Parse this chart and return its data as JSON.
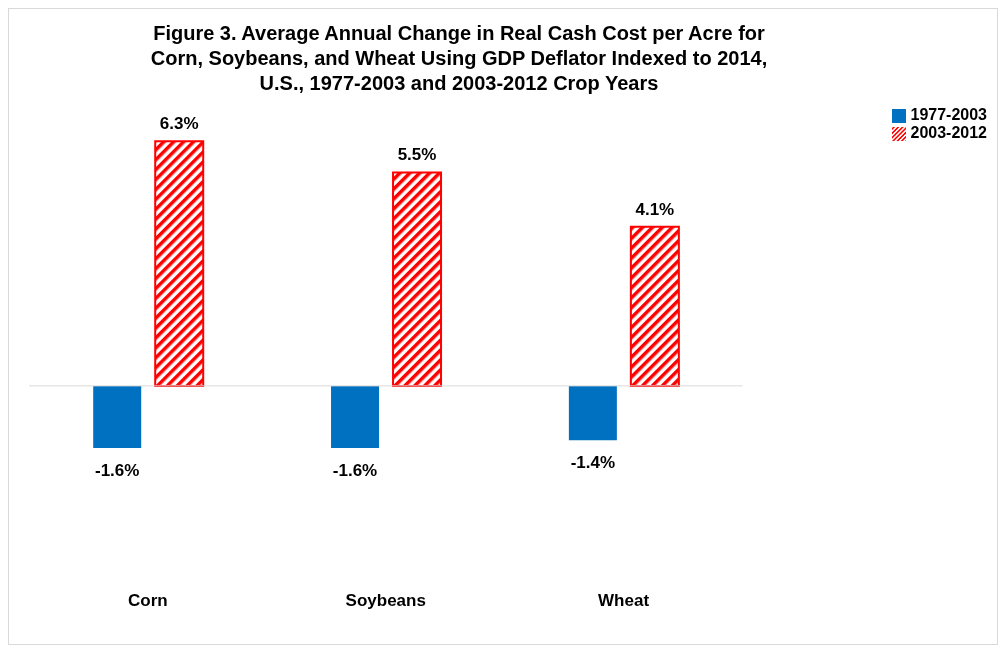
{
  "chart_data": {
    "type": "bar",
    "title": "Figure 3. Average Annual Change in Real Cash Cost per Acre for Corn, Soybeans, and Wheat Using GDP Deflator Indexed to 2014, U.S., 1977-2003 and 2003-2012 Crop Years",
    "categories": [
      "Corn",
      "Soybeans",
      "Wheat"
    ],
    "series": [
      {
        "name": "1977-2003",
        "color": "#0070c0",
        "values": [
          -1.6,
          -1.6,
          -1.4
        ],
        "value_labels": [
          "-1.6%",
          "-1.6%",
          "-1.4%"
        ]
      },
      {
        "name": "2003-2012",
        "color": "#ff0000",
        "values": [
          6.3,
          5.5,
          4.1
        ],
        "value_labels": [
          "6.3%",
          "5.5%",
          "4.1%"
        ]
      }
    ],
    "legend": "top right"
  }
}
